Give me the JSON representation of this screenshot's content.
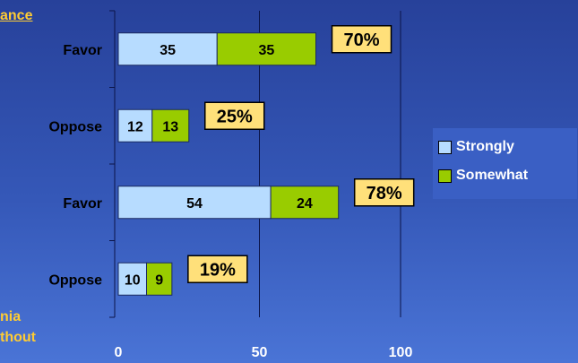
{
  "labels": {
    "top_clipped": "ance",
    "bottom_clipped_1": "nia",
    "bottom_clipped_2": "thout"
  },
  "colors": {
    "strongly": "#b7dcff",
    "somewhat": "#99cc00",
    "total_box": "#ffe07a",
    "axis_text": "#ffffff",
    "cut_label": "#ffcc33"
  },
  "chart_data": {
    "type": "bar",
    "orientation": "horizontal",
    "stacked": true,
    "categories": [
      "Favor",
      "Oppose",
      "Favor",
      "Oppose"
    ],
    "series": [
      {
        "name": "Strongly",
        "values": [
          35,
          12,
          54,
          10
        ]
      },
      {
        "name": "Somewhat",
        "values": [
          35,
          13,
          24,
          9
        ]
      }
    ],
    "totals": [
      "70%",
      "25%",
      "78%",
      "19%"
    ],
    "x_ticks": [
      "0",
      "50",
      "100"
    ],
    "xlim": [
      0,
      100
    ],
    "grid": true,
    "legend": {
      "placement": "right",
      "entries": [
        "Strongly",
        "Somewhat"
      ]
    }
  }
}
